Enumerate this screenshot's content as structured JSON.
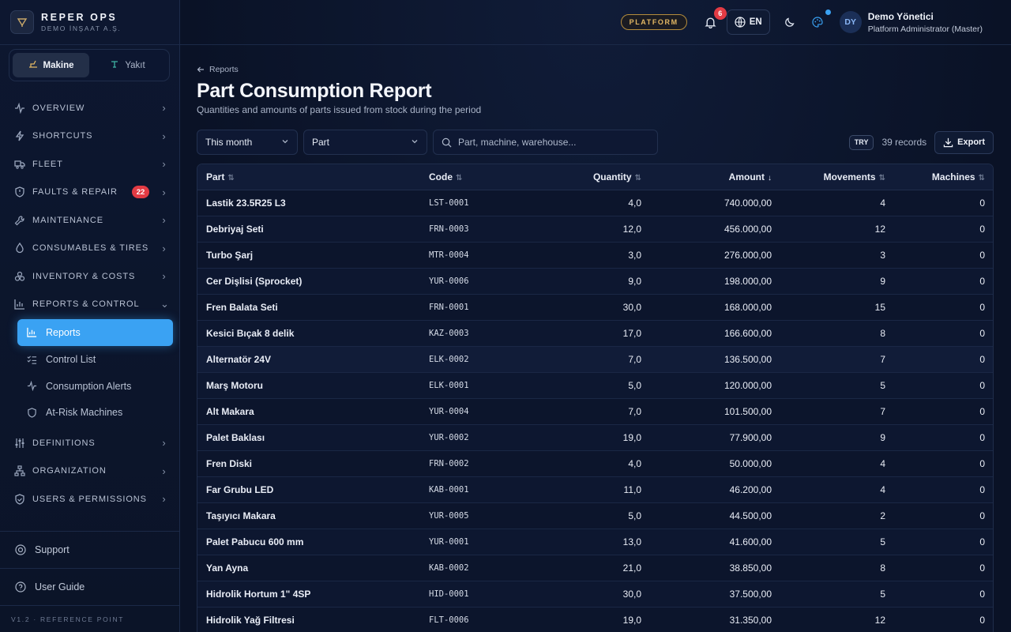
{
  "brand": {
    "name": "REPER OPS",
    "sub": "DEMO İNŞAAT A.Ş."
  },
  "mode_switch": [
    {
      "label": "Makine",
      "icon": "excavator-icon",
      "active": true
    },
    {
      "label": "Yakıt",
      "icon": "fuel-icon",
      "active": false
    }
  ],
  "nav": {
    "overview": "OVERVIEW",
    "shortcuts": "SHORTCUTS",
    "fleet": "FLEET",
    "faults": "FAULTS & REPAIR",
    "faults_badge": "22",
    "maintenance": "MAINTENANCE",
    "consumables": "CONSUMABLES & TIRES",
    "inventory": "INVENTORY & COSTS",
    "reports": "REPORTS & CONTROL",
    "reports_sub": {
      "reports": "Reports",
      "control_list": "Control List",
      "consumption_alerts": "Consumption Alerts",
      "at_risk": "At-Risk Machines"
    },
    "definitions": "DEFINITIONS",
    "organization": "ORGANIZATION",
    "users": "USERS & PERMISSIONS"
  },
  "bottom": {
    "support": "Support",
    "user_guide": "User Guide",
    "version": "V1.2 · REFERENCE POINT"
  },
  "topbar": {
    "platform": "PLATFORM",
    "notifications": "6",
    "language": "EN",
    "user": {
      "initials": "DY",
      "name": "Demo Yönetici",
      "role": "Platform Administrator (Master)"
    }
  },
  "page": {
    "breadcrumb": "Reports",
    "title": "Part Consumption Report",
    "subtitle": "Quantities and amounts of parts issued from stock during the period"
  },
  "filters": {
    "period": "This month",
    "group_by": "Part",
    "search_placeholder": "Part, machine, warehouse...",
    "currency": "TRY",
    "records": "39 records",
    "export": "Export"
  },
  "table": {
    "columns": [
      "Part",
      "Code",
      "Quantity",
      "Amount",
      "Movements",
      "Machines"
    ],
    "rows": [
      [
        "Lastik 23.5R25 L3",
        "LST-0001",
        "4,0",
        "740.000,00",
        "4",
        "0"
      ],
      [
        "Debriyaj Seti",
        "FRN-0003",
        "12,0",
        "456.000,00",
        "12",
        "0"
      ],
      [
        "Turbo Şarj",
        "MTR-0004",
        "3,0",
        "276.000,00",
        "3",
        "0"
      ],
      [
        "Cer Dişlisi (Sprocket)",
        "YUR-0006",
        "9,0",
        "198.000,00",
        "9",
        "0"
      ],
      [
        "Fren Balata Seti",
        "FRN-0001",
        "30,0",
        "168.000,00",
        "15",
        "0"
      ],
      [
        "Kesici Bıçak 8 delik",
        "KAZ-0003",
        "17,0",
        "166.600,00",
        "8",
        "0"
      ],
      [
        "Alternatör 24V",
        "ELK-0002",
        "7,0",
        "136.500,00",
        "7",
        "0"
      ],
      [
        "Marş Motoru",
        "ELK-0001",
        "5,0",
        "120.000,00",
        "5",
        "0"
      ],
      [
        "Alt Makara",
        "YUR-0004",
        "7,0",
        "101.500,00",
        "7",
        "0"
      ],
      [
        "Palet Baklası",
        "YUR-0002",
        "19,0",
        "77.900,00",
        "9",
        "0"
      ],
      [
        "Fren Diski",
        "FRN-0002",
        "4,0",
        "50.000,00",
        "4",
        "0"
      ],
      [
        "Far Grubu LED",
        "KAB-0001",
        "11,0",
        "46.200,00",
        "4",
        "0"
      ],
      [
        "Taşıyıcı Makara",
        "YUR-0005",
        "5,0",
        "44.500,00",
        "2",
        "0"
      ],
      [
        "Palet Pabucu 600 mm",
        "YUR-0001",
        "13,0",
        "41.600,00",
        "5",
        "0"
      ],
      [
        "Yan Ayna",
        "KAB-0002",
        "21,0",
        "38.850,00",
        "8",
        "0"
      ],
      [
        "Hidrolik Hortum 1\" 4SP",
        "HID-0001",
        "30,0",
        "37.500,00",
        "5",
        "0"
      ],
      [
        "Hidrolik Yağ Filtresi",
        "FLT-0006",
        "19,0",
        "31.350,00",
        "12",
        "0"
      ]
    ]
  },
  "colors": {
    "accent": "#3aa2f3",
    "danger": "#e23b44",
    "gold": "#e2b763",
    "bg": "#0a1226"
  }
}
